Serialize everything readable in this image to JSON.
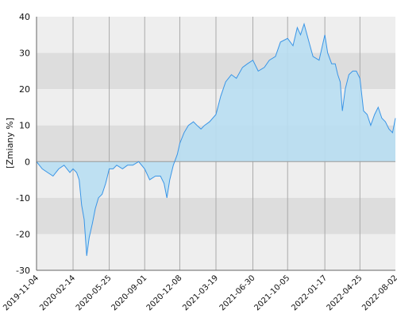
{
  "chart_data": {
    "type": "area",
    "title": "",
    "xlabel": "",
    "ylabel": "[Zmiany %]",
    "ylim": [
      -30,
      40
    ],
    "xlim": [
      "2019-11-04",
      "2022-08-02"
    ],
    "grid": true,
    "legend": "none",
    "colors": {
      "line": "#3a95e6",
      "fill": "#b8def2",
      "band_light": "#eeeeee",
      "band_dark": "#dddddd",
      "vgrid": "#aaaaaa",
      "zero_line": "#999999"
    },
    "y_ticks": [
      40,
      30,
      20,
      10,
      0,
      -10,
      -20,
      -30
    ],
    "y_tick_labels": [
      "40",
      "30",
      "20",
      "10",
      "0",
      "-10",
      "-20",
      "-30"
    ],
    "x_ticks": [
      "2019-11-04",
      "2020-02-14",
      "2020-05-25",
      "2020-09-01",
      "2020-12-08",
      "2021-03-19",
      "2021-06-30",
      "2021-10-05",
      "2022-01-17",
      "2022-04-25",
      "2022-08-02"
    ],
    "series": [
      {
        "x": [
          "2019-11-04",
          "2019-11-20",
          "2019-12-05",
          "2019-12-20",
          "2020-01-05",
          "2020-01-20",
          "2020-02-05",
          "2020-02-14",
          "2020-02-24",
          "2020-03-02",
          "2020-03-09",
          "2020-03-16",
          "2020-03-23",
          "2020-03-30",
          "2020-04-08",
          "2020-04-16",
          "2020-04-25",
          "2020-05-05",
          "2020-05-15",
          "2020-05-25",
          "2020-06-05",
          "2020-06-15",
          "2020-07-01",
          "2020-07-15",
          "2020-07-30",
          "2020-08-15",
          "2020-09-01",
          "2020-09-15",
          "2020-10-01",
          "2020-10-15",
          "2020-10-25",
          "2020-11-02",
          "2020-11-10",
          "2020-11-20",
          "2020-12-01",
          "2020-12-08",
          "2020-12-20",
          "2021-01-01",
          "2021-01-15",
          "2021-01-25",
          "2021-02-05",
          "2021-02-15",
          "2021-03-01",
          "2021-03-19",
          "2021-04-01",
          "2021-04-15",
          "2021-05-01",
          "2021-05-15",
          "2021-06-01",
          "2021-06-15",
          "2021-06-30",
          "2021-07-15",
          "2021-08-01",
          "2021-08-15",
          "2021-09-01",
          "2021-09-15",
          "2021-10-05",
          "2021-10-20",
          "2021-11-01",
          "2021-11-10",
          "2021-11-20",
          "2021-12-01",
          "2021-12-15",
          "2022-01-01",
          "2022-01-17",
          "2022-01-25",
          "2022-02-05",
          "2022-02-15",
          "2022-02-22",
          "2022-03-01",
          "2022-03-07",
          "2022-03-15",
          "2022-03-25",
          "2022-04-05",
          "2022-04-15",
          "2022-04-25",
          "2022-05-05",
          "2022-05-15",
          "2022-05-25",
          "2022-06-05",
          "2022-06-15",
          "2022-06-25",
          "2022-07-05",
          "2022-07-15",
          "2022-07-25",
          "2022-08-02"
        ],
        "values": [
          0,
          -2,
          -3,
          -4,
          -2,
          -1,
          -3,
          -2,
          -3,
          -5,
          -12,
          -16,
          -26,
          -21,
          -17,
          -13,
          -10,
          -9,
          -6,
          -2,
          -2,
          -1,
          -2,
          -1,
          -1,
          0,
          -2,
          -5,
          -4,
          -4,
          -6,
          -10,
          -5,
          -1,
          2,
          5,
          8,
          10,
          11,
          10,
          9,
          10,
          11,
          13,
          18,
          22,
          24,
          23,
          26,
          27,
          28,
          25,
          26,
          28,
          29,
          33,
          34,
          32,
          37,
          35,
          38,
          34,
          29,
          28,
          35,
          30,
          27,
          27,
          24,
          22,
          14,
          20,
          24,
          25,
          25,
          23,
          14,
          13,
          10,
          13,
          15,
          12,
          11,
          9,
          8,
          12
        ]
      }
    ]
  }
}
